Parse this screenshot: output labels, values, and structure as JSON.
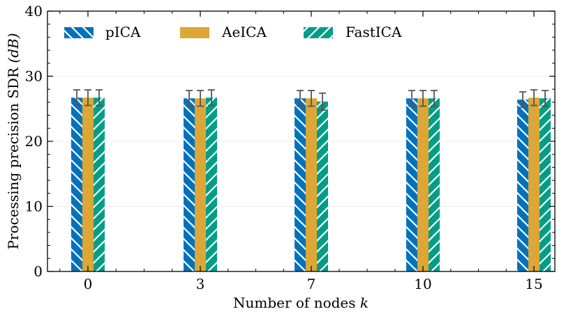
{
  "chart_data": {
    "type": "bar",
    "title": "",
    "xlabel": "Number of nodes",
    "xlabel_var": "k",
    "ylabel": "Processing precision SDR",
    "ylabel_unit": "(dB)",
    "ylim": [
      0,
      40
    ],
    "yticks": [
      0,
      10,
      20,
      30,
      40
    ],
    "grid": "horizontal, faint",
    "legend_position": "top-left",
    "categories": [
      "0",
      "3",
      "7",
      "10",
      "15"
    ],
    "series": [
      {
        "name": "pICA",
        "color": "#0072bd",
        "hatch": "backslash",
        "values": [
          26.7,
          26.6,
          26.6,
          26.6,
          26.4
        ],
        "errors": [
          1.2,
          1.2,
          1.2,
          1.2,
          1.2
        ]
      },
      {
        "name": "AeICA",
        "color": "#dca736",
        "hatch": "none",
        "values": [
          26.7,
          26.6,
          26.6,
          26.6,
          26.7
        ],
        "errors": [
          1.2,
          1.2,
          1.2,
          1.2,
          1.2
        ]
      },
      {
        "name": "FastICA",
        "color": "#009e87",
        "hatch": "slash",
        "values": [
          26.7,
          26.7,
          26.1,
          26.6,
          26.6
        ],
        "errors": [
          1.2,
          1.2,
          1.3,
          1.2,
          1.2
        ]
      }
    ]
  }
}
